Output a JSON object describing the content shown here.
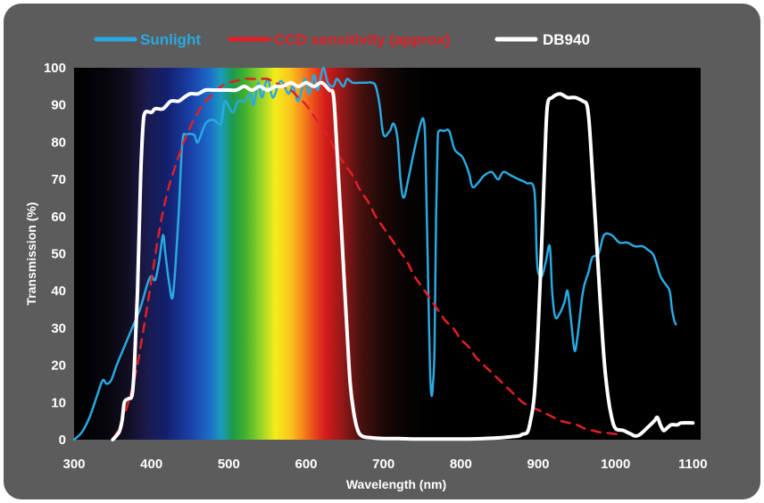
{
  "chart_data": {
    "type": "line",
    "title": "",
    "xlabel": "Wavelength (nm)",
    "ylabel": "Transmission (%)",
    "xlim": [
      300,
      1110
    ],
    "ylim": [
      0,
      100
    ],
    "x_ticks": [
      300,
      400,
      500,
      600,
      700,
      800,
      900,
      1000,
      1100
    ],
    "y_ticks": [
      0,
      10,
      20,
      30,
      40,
      50,
      60,
      70,
      80,
      90,
      100
    ],
    "background": "visible spectrum gradient, black outside 380-700 nm",
    "grid": false,
    "legend_position": "top",
    "series": [
      {
        "name": "Sunlight",
        "color": "#29a9e1",
        "style": "solid",
        "points": [
          [
            300,
            0
          ],
          [
            310,
            2
          ],
          [
            320,
            6
          ],
          [
            330,
            12
          ],
          [
            337,
            16
          ],
          [
            342,
            15
          ],
          [
            348,
            16
          ],
          [
            355,
            20
          ],
          [
            365,
            25
          ],
          [
            375,
            30
          ],
          [
            385,
            35
          ],
          [
            395,
            42
          ],
          [
            400,
            44
          ],
          [
            405,
            43
          ],
          [
            410,
            48
          ],
          [
            415,
            55
          ],
          [
            418,
            50
          ],
          [
            423,
            42
          ],
          [
            428,
            39
          ],
          [
            435,
            60
          ],
          [
            440,
            80
          ],
          [
            445,
            82
          ],
          [
            455,
            82
          ],
          [
            460,
            80
          ],
          [
            470,
            85
          ],
          [
            480,
            86
          ],
          [
            490,
            85
          ],
          [
            495,
            91
          ],
          [
            505,
            88
          ],
          [
            512,
            91
          ],
          [
            520,
            91
          ],
          [
            528,
            93
          ],
          [
            532,
            90
          ],
          [
            538,
            96
          ],
          [
            543,
            92
          ],
          [
            550,
            97
          ],
          [
            557,
            92
          ],
          [
            565,
            96
          ],
          [
            570,
            96
          ],
          [
            577,
            93
          ],
          [
            583,
            95
          ],
          [
            590,
            91
          ],
          [
            598,
            97
          ],
          [
            604,
            93
          ],
          [
            610,
            98
          ],
          [
            615,
            94
          ],
          [
            622,
            100
          ],
          [
            628,
            96
          ],
          [
            635,
            95
          ],
          [
            640,
            97
          ],
          [
            648,
            95
          ],
          [
            653,
            97
          ],
          [
            660,
            96
          ],
          [
            670,
            96
          ],
          [
            678,
            96
          ],
          [
            685,
            96
          ],
          [
            690,
            95
          ],
          [
            695,
            90
          ],
          [
            700,
            82
          ],
          [
            708,
            83
          ],
          [
            713,
            85
          ],
          [
            718,
            81
          ],
          [
            722,
            70
          ],
          [
            726,
            65
          ],
          [
            732,
            70
          ],
          [
            740,
            78
          ],
          [
            748,
            85
          ],
          [
            752,
            86
          ],
          [
            754,
            80
          ],
          [
            756,
            60
          ],
          [
            758,
            40
          ],
          [
            760,
            20
          ],
          [
            762,
            12
          ],
          [
            764,
            15
          ],
          [
            766,
            25
          ],
          [
            768,
            60
          ],
          [
            770,
            80
          ],
          [
            772,
            83
          ],
          [
            778,
            83
          ],
          [
            785,
            83
          ],
          [
            792,
            78
          ],
          [
            802,
            76
          ],
          [
            810,
            72
          ],
          [
            815,
            68
          ],
          [
            822,
            69
          ],
          [
            830,
            71
          ],
          [
            840,
            72
          ],
          [
            848,
            70
          ],
          [
            855,
            72
          ],
          [
            865,
            71
          ],
          [
            875,
            70
          ],
          [
            885,
            69
          ],
          [
            895,
            67
          ],
          [
            898,
            50
          ],
          [
            900,
            45
          ],
          [
            905,
            44
          ],
          [
            910,
            48
          ],
          [
            915,
            52
          ],
          [
            918,
            40
          ],
          [
            922,
            33
          ],
          [
            928,
            34
          ],
          [
            934,
            37
          ],
          [
            938,
            40
          ],
          [
            942,
            33
          ],
          [
            947,
            24
          ],
          [
            951,
            28
          ],
          [
            958,
            40
          ],
          [
            965,
            45
          ],
          [
            970,
            49
          ],
          [
            978,
            50
          ],
          [
            985,
            55
          ],
          [
            995,
            55
          ],
          [
            1005,
            53
          ],
          [
            1015,
            53
          ],
          [
            1025,
            52
          ],
          [
            1035,
            52
          ],
          [
            1042,
            51
          ],
          [
            1048,
            50
          ],
          [
            1052,
            48
          ],
          [
            1058,
            44
          ],
          [
            1064,
            42
          ],
          [
            1070,
            40
          ],
          [
            1073,
            35
          ],
          [
            1076,
            32
          ],
          [
            1078,
            31
          ]
        ]
      },
      {
        "name": "CCD sensitivity (approx)",
        "color": "#e11f26",
        "style": "dashed",
        "points": [
          [
            350,
            0
          ],
          [
            360,
            4
          ],
          [
            370,
            10
          ],
          [
            380,
            18
          ],
          [
            390,
            30
          ],
          [
            400,
            43
          ],
          [
            410,
            56
          ],
          [
            420,
            66
          ],
          [
            430,
            73
          ],
          [
            440,
            79
          ],
          [
            450,
            84
          ],
          [
            460,
            88
          ],
          [
            470,
            91
          ],
          [
            480,
            93
          ],
          [
            490,
            95
          ],
          [
            500,
            96
          ],
          [
            510,
            96.5
          ],
          [
            520,
            97
          ],
          [
            530,
            97
          ],
          [
            540,
            97
          ],
          [
            550,
            97
          ],
          [
            560,
            96
          ],
          [
            570,
            95
          ],
          [
            580,
            94
          ],
          [
            590,
            92
          ],
          [
            600,
            90
          ],
          [
            610,
            87
          ],
          [
            620,
            84
          ],
          [
            630,
            81
          ],
          [
            640,
            77
          ],
          [
            650,
            74
          ],
          [
            660,
            71
          ],
          [
            670,
            67
          ],
          [
            680,
            64
          ],
          [
            690,
            60
          ],
          [
            700,
            57
          ],
          [
            710,
            54
          ],
          [
            720,
            51
          ],
          [
            730,
            48
          ],
          [
            740,
            44
          ],
          [
            750,
            41
          ],
          [
            760,
            38
          ],
          [
            770,
            35
          ],
          [
            780,
            32
          ],
          [
            790,
            30
          ],
          [
            800,
            27
          ],
          [
            810,
            25
          ],
          [
            820,
            22
          ],
          [
            830,
            20
          ],
          [
            840,
            18
          ],
          [
            850,
            16
          ],
          [
            860,
            14
          ],
          [
            870,
            12
          ],
          [
            880,
            10
          ],
          [
            890,
            9
          ],
          [
            900,
            8
          ],
          [
            910,
            7
          ],
          [
            920,
            6
          ],
          [
            930,
            5
          ],
          [
            940,
            4.5
          ],
          [
            950,
            4
          ],
          [
            960,
            3
          ],
          [
            970,
            2.5
          ],
          [
            980,
            2
          ],
          [
            990,
            1.8
          ],
          [
            1000,
            1.5
          ],
          [
            1010,
            1.2
          ]
        ]
      },
      {
        "name": "DB940",
        "color": "#ffffff",
        "style": "solid",
        "points": [
          [
            350,
            0
          ],
          [
            358,
            2
          ],
          [
            362,
            5
          ],
          [
            365,
            10
          ],
          [
            370,
            11
          ],
          [
            375,
            12
          ],
          [
            378,
            20
          ],
          [
            382,
            40
          ],
          [
            386,
            70
          ],
          [
            389,
            84
          ],
          [
            392,
            88
          ],
          [
            400,
            88
          ],
          [
            405,
            89
          ],
          [
            415,
            89
          ],
          [
            425,
            91
          ],
          [
            435,
            91
          ],
          [
            442,
            92
          ],
          [
            450,
            93
          ],
          [
            460,
            93
          ],
          [
            470,
            94
          ],
          [
            480,
            94
          ],
          [
            490,
            94
          ],
          [
            500,
            94
          ],
          [
            510,
            94
          ],
          [
            520,
            95
          ],
          [
            530,
            94
          ],
          [
            540,
            95
          ],
          [
            550,
            94
          ],
          [
            560,
            95
          ],
          [
            570,
            95
          ],
          [
            580,
            96
          ],
          [
            590,
            95
          ],
          [
            600,
            96
          ],
          [
            610,
            95
          ],
          [
            620,
            96
          ],
          [
            630,
            94
          ],
          [
            635,
            93
          ],
          [
            638,
            85
          ],
          [
            642,
            70
          ],
          [
            646,
            55
          ],
          [
            650,
            40
          ],
          [
            654,
            25
          ],
          [
            657,
            15
          ],
          [
            661,
            8
          ],
          [
            666,
            3
          ],
          [
            672,
            1
          ],
          [
            685,
            0.5
          ],
          [
            700,
            0.3
          ],
          [
            720,
            0.3
          ],
          [
            740,
            0.2
          ],
          [
            760,
            0.2
          ],
          [
            790,
            0.2
          ],
          [
            810,
            0.2
          ],
          [
            830,
            0.3
          ],
          [
            850,
            0.5
          ],
          [
            865,
            0.8
          ],
          [
            875,
            1
          ],
          [
            880,
            1.5
          ],
          [
            886,
            2
          ],
          [
            890,
            5
          ],
          [
            895,
            12
          ],
          [
            900,
            30
          ],
          [
            905,
            55
          ],
          [
            909,
            78
          ],
          [
            912,
            90
          ],
          [
            918,
            92
          ],
          [
            928,
            93
          ],
          [
            938,
            92
          ],
          [
            948,
            92
          ],
          [
            958,
            91
          ],
          [
            963,
            90
          ],
          [
            966,
            85
          ],
          [
            970,
            72
          ],
          [
            975,
            55
          ],
          [
            980,
            38
          ],
          [
            985,
            22
          ],
          [
            990,
            12
          ],
          [
            995,
            6
          ],
          [
            1000,
            3
          ],
          [
            1010,
            2.5
          ],
          [
            1015,
            2
          ],
          [
            1020,
            1.5
          ],
          [
            1025,
            1
          ],
          [
            1030,
            1.2
          ],
          [
            1035,
            2
          ],
          [
            1040,
            3
          ],
          [
            1050,
            5
          ],
          [
            1054,
            6
          ],
          [
            1058,
            4
          ],
          [
            1062,
            2.5
          ],
          [
            1066,
            3
          ],
          [
            1072,
            4
          ],
          [
            1080,
            4
          ],
          [
            1085,
            4.5
          ],
          [
            1100,
            4.5
          ]
        ]
      }
    ]
  }
}
